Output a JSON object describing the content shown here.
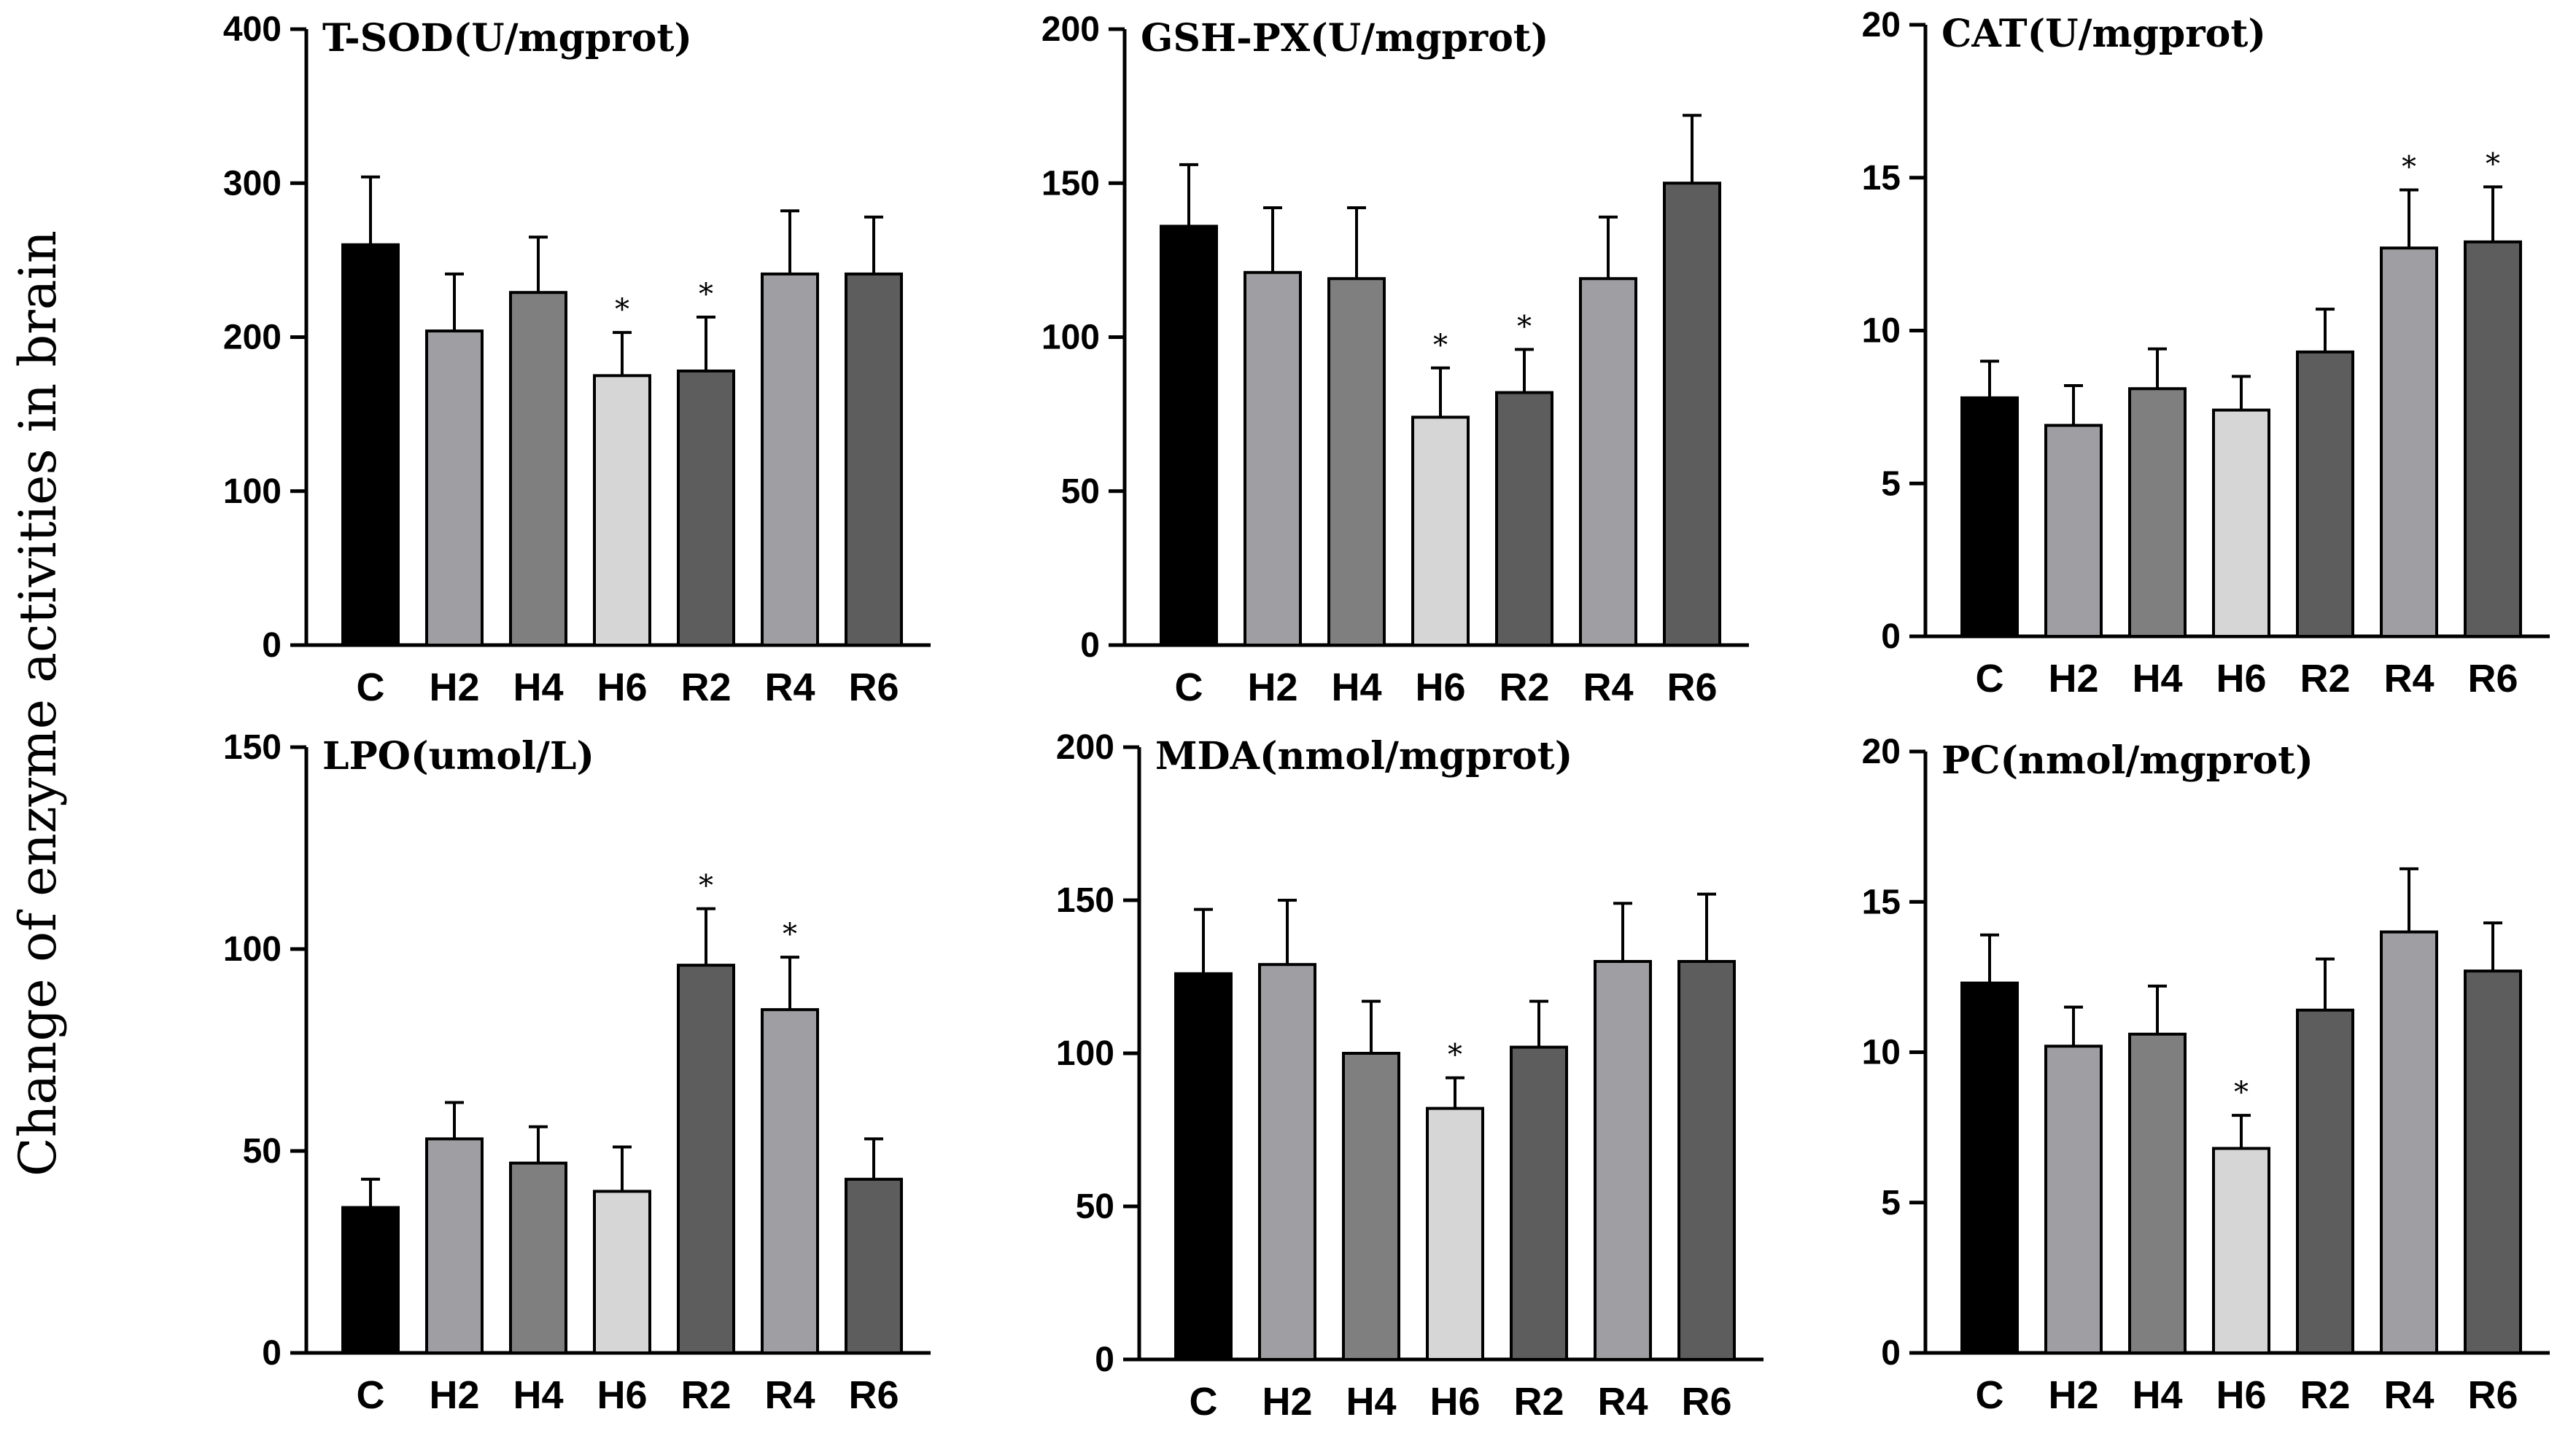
{
  "figure": {
    "ylabel": "Change of enzyme activities in brain",
    "categories": [
      "C",
      "H2",
      "H4",
      "H6",
      "R2",
      "R4",
      "R6"
    ],
    "bar_colors": [
      "#000000",
      "#9e9ea3",
      "#7f7f7f",
      "#d6d6d6",
      "#5d5d5d",
      "#9e9ea3",
      "#5d5d5d"
    ]
  },
  "chart_data": [
    {
      "type": "bar",
      "title": "T-SOD(U/mgprot)",
      "categories": [
        "C",
        "H2",
        "H4",
        "H6",
        "R2",
        "R4",
        "R6"
      ],
      "values": [
        260,
        204,
        229,
        175,
        178,
        241,
        241
      ],
      "errors": [
        44,
        37,
        36,
        28,
        35,
        41,
        37
      ],
      "significant": [
        false,
        false,
        false,
        true,
        true,
        false,
        false
      ],
      "ylim": [
        0,
        400
      ],
      "yticks": [
        0,
        100,
        200,
        300,
        400
      ]
    },
    {
      "type": "bar",
      "title": "GSH-PX(U/mgprot)",
      "categories": [
        "C",
        "H2",
        "H4",
        "H6",
        "R2",
        "R4",
        "R6"
      ],
      "values": [
        136,
        121,
        119,
        74,
        82,
        119,
        150
      ],
      "errors": [
        20,
        21,
        23,
        16,
        14,
        20,
        22
      ],
      "significant": [
        false,
        false,
        false,
        true,
        true,
        false,
        false
      ],
      "ylim": [
        0,
        200
      ],
      "yticks": [
        0,
        50,
        100,
        150,
        200
      ]
    },
    {
      "type": "bar",
      "title": "CAT(U/mgprot)",
      "categories": [
        "C",
        "H2",
        "H4",
        "H6",
        "R2",
        "R4",
        "R6"
      ],
      "values": [
        7.8,
        6.9,
        8.1,
        7.4,
        9.3,
        12.7,
        12.9
      ],
      "errors": [
        1.2,
        1.3,
        1.3,
        1.1,
        1.4,
        1.9,
        1.8
      ],
      "significant": [
        false,
        false,
        false,
        false,
        false,
        true,
        true
      ],
      "ylim": [
        0,
        20
      ],
      "yticks": [
        0,
        5,
        10,
        15,
        20
      ]
    },
    {
      "type": "bar",
      "title": "LPO(umol/L)",
      "categories": [
        "C",
        "H2",
        "H4",
        "H6",
        "R2",
        "R4",
        "R6"
      ],
      "values": [
        36,
        53,
        47,
        40,
        96,
        85,
        43
      ],
      "errors": [
        7,
        9,
        9,
        11,
        14,
        13,
        10
      ],
      "significant": [
        false,
        false,
        false,
        false,
        true,
        true,
        false
      ],
      "ylim": [
        0,
        150
      ],
      "yticks": [
        0,
        50,
        100,
        150
      ]
    },
    {
      "type": "bar",
      "title": "MDA(nmol/mgprot)",
      "categories": [
        "C",
        "H2",
        "H4",
        "H6",
        "R2",
        "R4",
        "R6"
      ],
      "values": [
        126,
        129,
        100,
        82,
        102,
        130,
        130
      ],
      "errors": [
        21,
        21,
        17,
        10,
        15,
        19,
        22
      ],
      "significant": [
        false,
        false,
        false,
        true,
        false,
        false,
        false
      ],
      "ylim": [
        0,
        200
      ],
      "yticks": [
        0,
        50,
        100,
        150,
        200
      ]
    },
    {
      "type": "bar",
      "title": "PC(nmol/mgprot)",
      "categories": [
        "C",
        "H2",
        "H4",
        "H6",
        "R2",
        "R4",
        "R6"
      ],
      "values": [
        12.3,
        10.2,
        10.6,
        6.8,
        11.4,
        14.0,
        12.7
      ],
      "errors": [
        1.6,
        1.3,
        1.6,
        1.1,
        1.7,
        2.1,
        1.6
      ],
      "significant": [
        false,
        false,
        false,
        true,
        false,
        false,
        false
      ],
      "ylim": [
        0,
        20
      ],
      "yticks": [
        0,
        5,
        10,
        15,
        20
      ]
    }
  ]
}
